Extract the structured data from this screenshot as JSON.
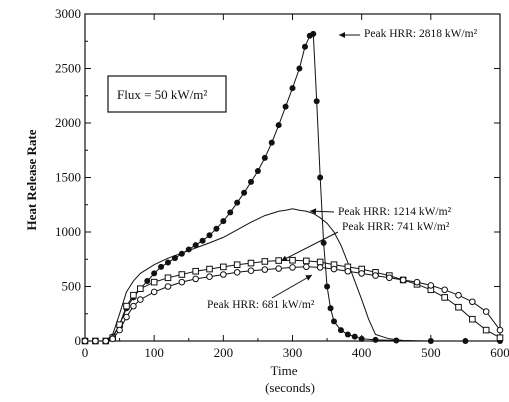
{
  "chart_data": {
    "type": "line",
    "xlabel": "Time",
    "xlabel_sub": "(seconds)",
    "ylabel": "Heat Release Rate",
    "xlim": [
      0,
      600
    ],
    "ylim": [
      0,
      3000
    ],
    "x_ticks": [
      0,
      100,
      200,
      300,
      400,
      500,
      600
    ],
    "x_tick_labels": [
      "0",
      "100",
      "200",
      "300",
      "400",
      "500",
      "600"
    ],
    "y_ticks": [
      0,
      500,
      1000,
      1500,
      2000,
      2500,
      3000
    ],
    "y_tick_labels": [
      "0",
      "500",
      "1000",
      "1500",
      "2000",
      "2500",
      "3000"
    ],
    "grid": false,
    "box_label": "Flux = 50 kW/m²",
    "series": [
      {
        "marker": "filled-circle",
        "x": [
          0,
          15,
          30,
          40,
          50,
          60,
          70,
          80,
          90,
          100,
          110,
          120,
          130,
          140,
          150,
          160,
          170,
          180,
          190,
          200,
          210,
          220,
          230,
          240,
          250,
          260,
          270,
          280,
          290,
          300,
          310,
          318,
          325,
          330,
          335,
          340,
          345,
          350,
          355,
          360,
          370,
          380,
          390,
          400,
          420,
          450,
          500,
          550,
          600
        ],
        "y": [
          0,
          0,
          0,
          40,
          150,
          300,
          400,
          480,
          550,
          620,
          680,
          720,
          760,
          800,
          840,
          880,
          920,
          970,
          1030,
          1100,
          1180,
          1270,
          1360,
          1460,
          1560,
          1680,
          1820,
          1980,
          2150,
          2320,
          2500,
          2700,
          2800,
          2818,
          2200,
          1500,
          900,
          500,
          300,
          180,
          100,
          60,
          40,
          20,
          10,
          5,
          0,
          0,
          0
        ]
      },
      {
        "marker": "none",
        "x": [
          0,
          15,
          30,
          40,
          50,
          60,
          70,
          80,
          100,
          120,
          150,
          180,
          200,
          220,
          240,
          260,
          280,
          290,
          300,
          310,
          320,
          330,
          340,
          350,
          360,
          370,
          380,
          390,
          400,
          410,
          420,
          440,
          460,
          480,
          500,
          550,
          600
        ],
        "y": [
          0,
          0,
          0,
          60,
          250,
          450,
          550,
          620,
          700,
          760,
          830,
          900,
          950,
          1020,
          1090,
          1150,
          1190,
          1200,
          1214,
          1200,
          1190,
          1170,
          1130,
          1080,
          1000,
          880,
          720,
          550,
          380,
          200,
          60,
          20,
          5,
          0,
          0,
          0,
          0
        ]
      },
      {
        "marker": "open-square",
        "x": [
          0,
          15,
          30,
          40,
          50,
          60,
          70,
          80,
          100,
          120,
          140,
          160,
          180,
          200,
          220,
          240,
          260,
          280,
          300,
          320,
          340,
          360,
          380,
          400,
          420,
          440,
          460,
          480,
          500,
          520,
          540,
          560,
          580,
          600
        ],
        "y": [
          0,
          0,
          0,
          30,
          150,
          320,
          420,
          480,
          540,
          580,
          610,
          640,
          660,
          680,
          700,
          715,
          730,
          738,
          741,
          735,
          725,
          700,
          680,
          660,
          630,
          600,
          560,
          520,
          470,
          400,
          310,
          200,
          100,
          30
        ]
      },
      {
        "marker": "open-circle",
        "x": [
          0,
          15,
          30,
          40,
          50,
          60,
          70,
          80,
          100,
          120,
          140,
          160,
          180,
          200,
          220,
          240,
          260,
          280,
          300,
          320,
          340,
          360,
          380,
          400,
          420,
          440,
          460,
          480,
          500,
          520,
          540,
          560,
          580,
          600
        ],
        "y": [
          0,
          0,
          0,
          20,
          100,
          220,
          320,
          380,
          450,
          500,
          540,
          570,
          590,
          610,
          630,
          645,
          655,
          665,
          675,
          681,
          675,
          660,
          640,
          620,
          600,
          580,
          560,
          540,
          510,
          470,
          420,
          360,
          270,
          100
        ]
      }
    ],
    "annotations": [
      {
        "text": "Peak HRR:  2818 kW/m²",
        "x": 330,
        "y": 2818
      },
      {
        "text": "Peak HRR:  1214 kW/m²",
        "x": 300,
        "y": 1214
      },
      {
        "text": "Peak HRR:  741 kW/m²",
        "x": 300,
        "y": 741
      },
      {
        "text": "Peak HRR:  681 kW/m²",
        "x": 320,
        "y": 681
      }
    ]
  }
}
